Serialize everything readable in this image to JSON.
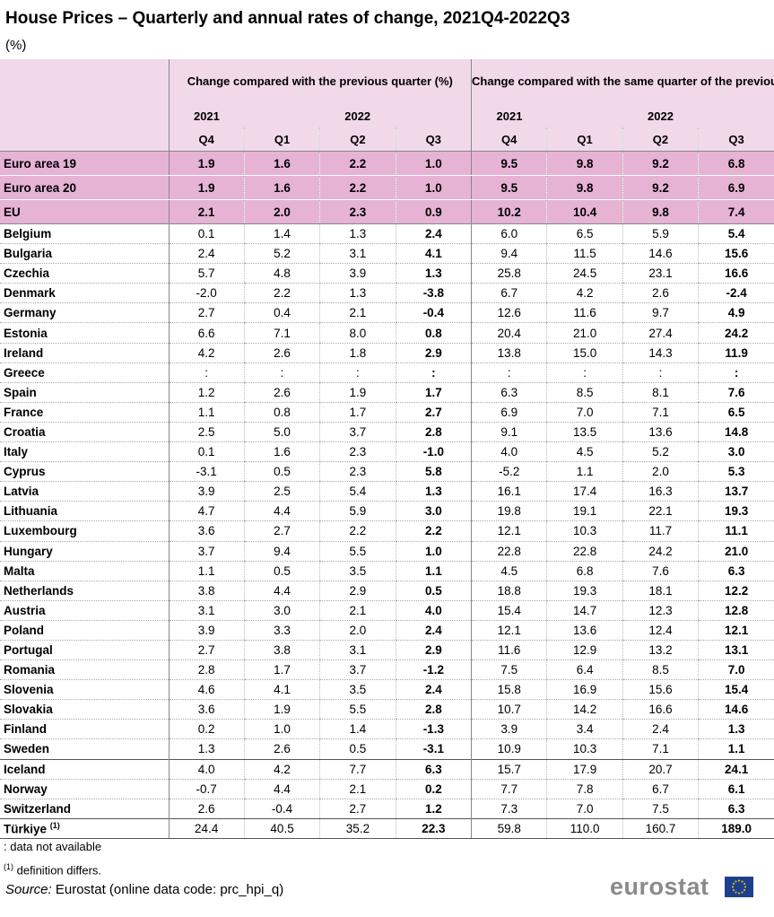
{
  "title": "House Prices – Quarterly and annual rates of change, 2021Q4-2022Q3",
  "unit": "(%)",
  "header": {
    "group1": "Change compared with the previous quarter (%)",
    "group2": "Change compared with the same quarter of the previous year (%)",
    "year_2021": "2021",
    "year_2022": "2022",
    "quarters": [
      "Q4",
      "Q1",
      "Q2",
      "Q3",
      "Q4",
      "Q1",
      "Q2",
      "Q3"
    ]
  },
  "chart_data": {
    "type": "table",
    "columns": [
      "2021 Q4 qoq",
      "2022 Q1 qoq",
      "2022 Q2 qoq",
      "2022 Q3 qoq",
      "2021 Q4 yoy",
      "2022 Q1 yoy",
      "2022 Q2 yoy",
      "2022 Q3 yoy"
    ],
    "rows": [
      {
        "name": "Euro area 19",
        "values": [
          "1.9",
          "1.6",
          "2.2",
          "1.0",
          "9.5",
          "9.8",
          "9.2",
          "6.8"
        ]
      },
      {
        "name": "Euro area 20",
        "values": [
          "1.9",
          "1.6",
          "2.2",
          "1.0",
          "9.5",
          "9.8",
          "9.2",
          "6.9"
        ]
      },
      {
        "name": "EU",
        "values": [
          "2.1",
          "2.0",
          "2.3",
          "0.9",
          "10.2",
          "10.4",
          "9.8",
          "7.4"
        ]
      },
      {
        "name": "Belgium",
        "values": [
          "0.1",
          "1.4",
          "1.3",
          "2.4",
          "6.0",
          "6.5",
          "5.9",
          "5.4"
        ]
      },
      {
        "name": "Bulgaria",
        "values": [
          "2.4",
          "5.2",
          "3.1",
          "4.1",
          "9.4",
          "11.5",
          "14.6",
          "15.6"
        ]
      },
      {
        "name": "Czechia",
        "values": [
          "5.7",
          "4.8",
          "3.9",
          "1.3",
          "25.8",
          "24.5",
          "23.1",
          "16.6"
        ]
      },
      {
        "name": "Denmark",
        "values": [
          "-2.0",
          "2.2",
          "1.3",
          "-3.8",
          "6.7",
          "4.2",
          "2.6",
          "-2.4"
        ]
      },
      {
        "name": "Germany",
        "values": [
          "2.7",
          "0.4",
          "2.1",
          "-0.4",
          "12.6",
          "11.6",
          "9.7",
          "4.9"
        ]
      },
      {
        "name": "Estonia",
        "values": [
          "6.6",
          "7.1",
          "8.0",
          "0.8",
          "20.4",
          "21.0",
          "27.4",
          "24.2"
        ]
      },
      {
        "name": "Ireland",
        "values": [
          "4.2",
          "2.6",
          "1.8",
          "2.9",
          "13.8",
          "15.0",
          "14.3",
          "11.9"
        ]
      },
      {
        "name": "Greece",
        "values": [
          ":",
          ":",
          ":",
          ":",
          ":",
          ":",
          ":",
          ":"
        ]
      },
      {
        "name": "Spain",
        "values": [
          "1.2",
          "2.6",
          "1.9",
          "1.7",
          "6.3",
          "8.5",
          "8.1",
          "7.6"
        ]
      },
      {
        "name": "France",
        "values": [
          "1.1",
          "0.8",
          "1.7",
          "2.7",
          "6.9",
          "7.0",
          "7.1",
          "6.5"
        ]
      },
      {
        "name": "Croatia",
        "values": [
          "2.5",
          "5.0",
          "3.7",
          "2.8",
          "9.1",
          "13.5",
          "13.6",
          "14.8"
        ]
      },
      {
        "name": "Italy",
        "values": [
          "0.1",
          "1.6",
          "2.3",
          "-1.0",
          "4.0",
          "4.5",
          "5.2",
          "3.0"
        ]
      },
      {
        "name": "Cyprus",
        "values": [
          "-3.1",
          "0.5",
          "2.3",
          "5.8",
          "-5.2",
          "1.1",
          "2.0",
          "5.3"
        ]
      },
      {
        "name": "Latvia",
        "values": [
          "3.9",
          "2.5",
          "5.4",
          "1.3",
          "16.1",
          "17.4",
          "16.3",
          "13.7"
        ]
      },
      {
        "name": "Lithuania",
        "values": [
          "4.7",
          "4.4",
          "5.9",
          "3.0",
          "19.8",
          "19.1",
          "22.1",
          "19.3"
        ]
      },
      {
        "name": "Luxembourg",
        "values": [
          "3.6",
          "2.7",
          "2.2",
          "2.2",
          "12.1",
          "10.3",
          "11.7",
          "11.1"
        ]
      },
      {
        "name": "Hungary",
        "values": [
          "3.7",
          "9.4",
          "5.5",
          "1.0",
          "22.8",
          "22.8",
          "24.2",
          "21.0"
        ]
      },
      {
        "name": "Malta",
        "values": [
          "1.1",
          "0.5",
          "3.5",
          "1.1",
          "4.5",
          "6.8",
          "7.6",
          "6.3"
        ]
      },
      {
        "name": "Netherlands",
        "values": [
          "3.8",
          "4.4",
          "2.9",
          "0.5",
          "18.8",
          "19.3",
          "18.1",
          "12.2"
        ]
      },
      {
        "name": "Austria",
        "values": [
          "3.1",
          "3.0",
          "2.1",
          "4.0",
          "15.4",
          "14.7",
          "12.3",
          "12.8"
        ]
      },
      {
        "name": "Poland",
        "values": [
          "3.9",
          "3.3",
          "2.0",
          "2.4",
          "12.1",
          "13.6",
          "12.4",
          "12.1"
        ]
      },
      {
        "name": "Portugal",
        "values": [
          "2.7",
          "3.8",
          "3.1",
          "2.9",
          "11.6",
          "12.9",
          "13.2",
          "13.1"
        ]
      },
      {
        "name": "Romania",
        "values": [
          "2.8",
          "1.7",
          "3.7",
          "-1.2",
          "7.5",
          "6.4",
          "8.5",
          "7.0"
        ]
      },
      {
        "name": "Slovenia",
        "values": [
          "4.6",
          "4.1",
          "3.5",
          "2.4",
          "15.8",
          "16.9",
          "15.6",
          "15.4"
        ]
      },
      {
        "name": "Slovakia",
        "values": [
          "3.6",
          "1.9",
          "5.5",
          "2.8",
          "10.7",
          "14.2",
          "16.6",
          "14.6"
        ]
      },
      {
        "name": "Finland",
        "values": [
          "0.2",
          "1.0",
          "1.4",
          "-1.3",
          "3.9",
          "3.4",
          "2.4",
          "1.3"
        ]
      },
      {
        "name": "Sweden",
        "values": [
          "1.3",
          "2.6",
          "0.5",
          "-3.1",
          "10.9",
          "10.3",
          "7.1",
          "1.1"
        ]
      },
      {
        "name": "Iceland",
        "values": [
          "4.0",
          "4.2",
          "7.7",
          "6.3",
          "15.7",
          "17.9",
          "20.7",
          "24.1"
        ]
      },
      {
        "name": "Norway",
        "values": [
          "-0.7",
          "4.4",
          "2.1",
          "0.2",
          "7.7",
          "7.8",
          "6.7",
          "6.1"
        ]
      },
      {
        "name": "Switzerland",
        "values": [
          "2.6",
          "-0.4",
          "2.7",
          "1.2",
          "7.3",
          "7.0",
          "7.5",
          "6.3"
        ]
      },
      {
        "name": "Türkiye",
        "footnote": "(1)",
        "values": [
          "24.4",
          "40.5",
          "35.2",
          "22.3",
          "59.8",
          "110.0",
          "160.7",
          "189.0"
        ]
      }
    ]
  },
  "notes": {
    "not_available": ": data not available",
    "footnote_marker": "(1)",
    "footnote_text": " definition differs."
  },
  "source": {
    "label": "Source:",
    "text": " Eurostat (online data code: prc_hpi_q)"
  },
  "logo": "eurostat",
  "colors": {
    "header_bg": "#f1d9ea",
    "aggregate_bg": "#e6b3d5",
    "logo_text": "#8a8a8a",
    "flag_blue": "#1d3f8f",
    "flag_star": "#ffd200"
  }
}
